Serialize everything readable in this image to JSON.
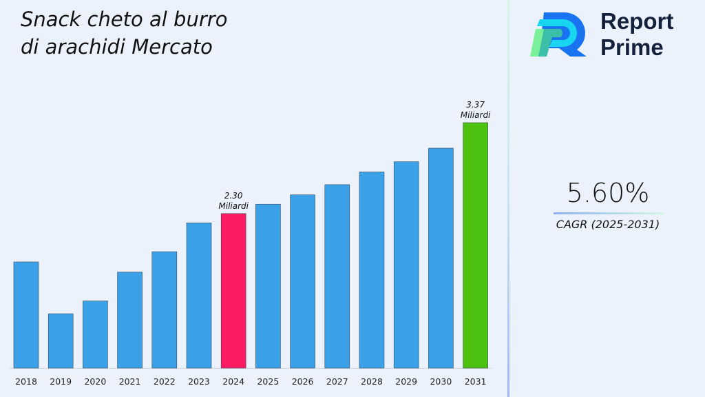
{
  "title_lines": [
    "Snack cheto al burro",
    "di arachidi Mercato"
  ],
  "brand": {
    "line1": "Report",
    "line2": "Prime"
  },
  "cagr": {
    "value": "5.60%",
    "label": "CAGR (2025-2031)"
  },
  "chart_data": {
    "type": "bar",
    "categories": [
      "2018",
      "2019",
      "2020",
      "2021",
      "2022",
      "2023",
      "2024",
      "2025",
      "2026",
      "2027",
      "2028",
      "2029",
      "2030",
      "2031"
    ],
    "values": [
      1.73,
      1.12,
      1.27,
      1.61,
      1.85,
      2.19,
      2.3,
      2.41,
      2.52,
      2.64,
      2.79,
      2.91,
      3.07,
      3.37
    ],
    "ylim": [
      0.48,
      3.6
    ],
    "colors": {
      "default": "#3aa0e8",
      "highlight_2024": "#fc1a63",
      "highlight_2031": "#4cc10f"
    },
    "annotations": [
      {
        "category": "2024",
        "line1": "2.30",
        "line2": "Miliardi"
      },
      {
        "category": "2031",
        "line1": "3.37",
        "line2": "Miliardi"
      }
    ],
    "grid": false,
    "legend": "none"
  }
}
